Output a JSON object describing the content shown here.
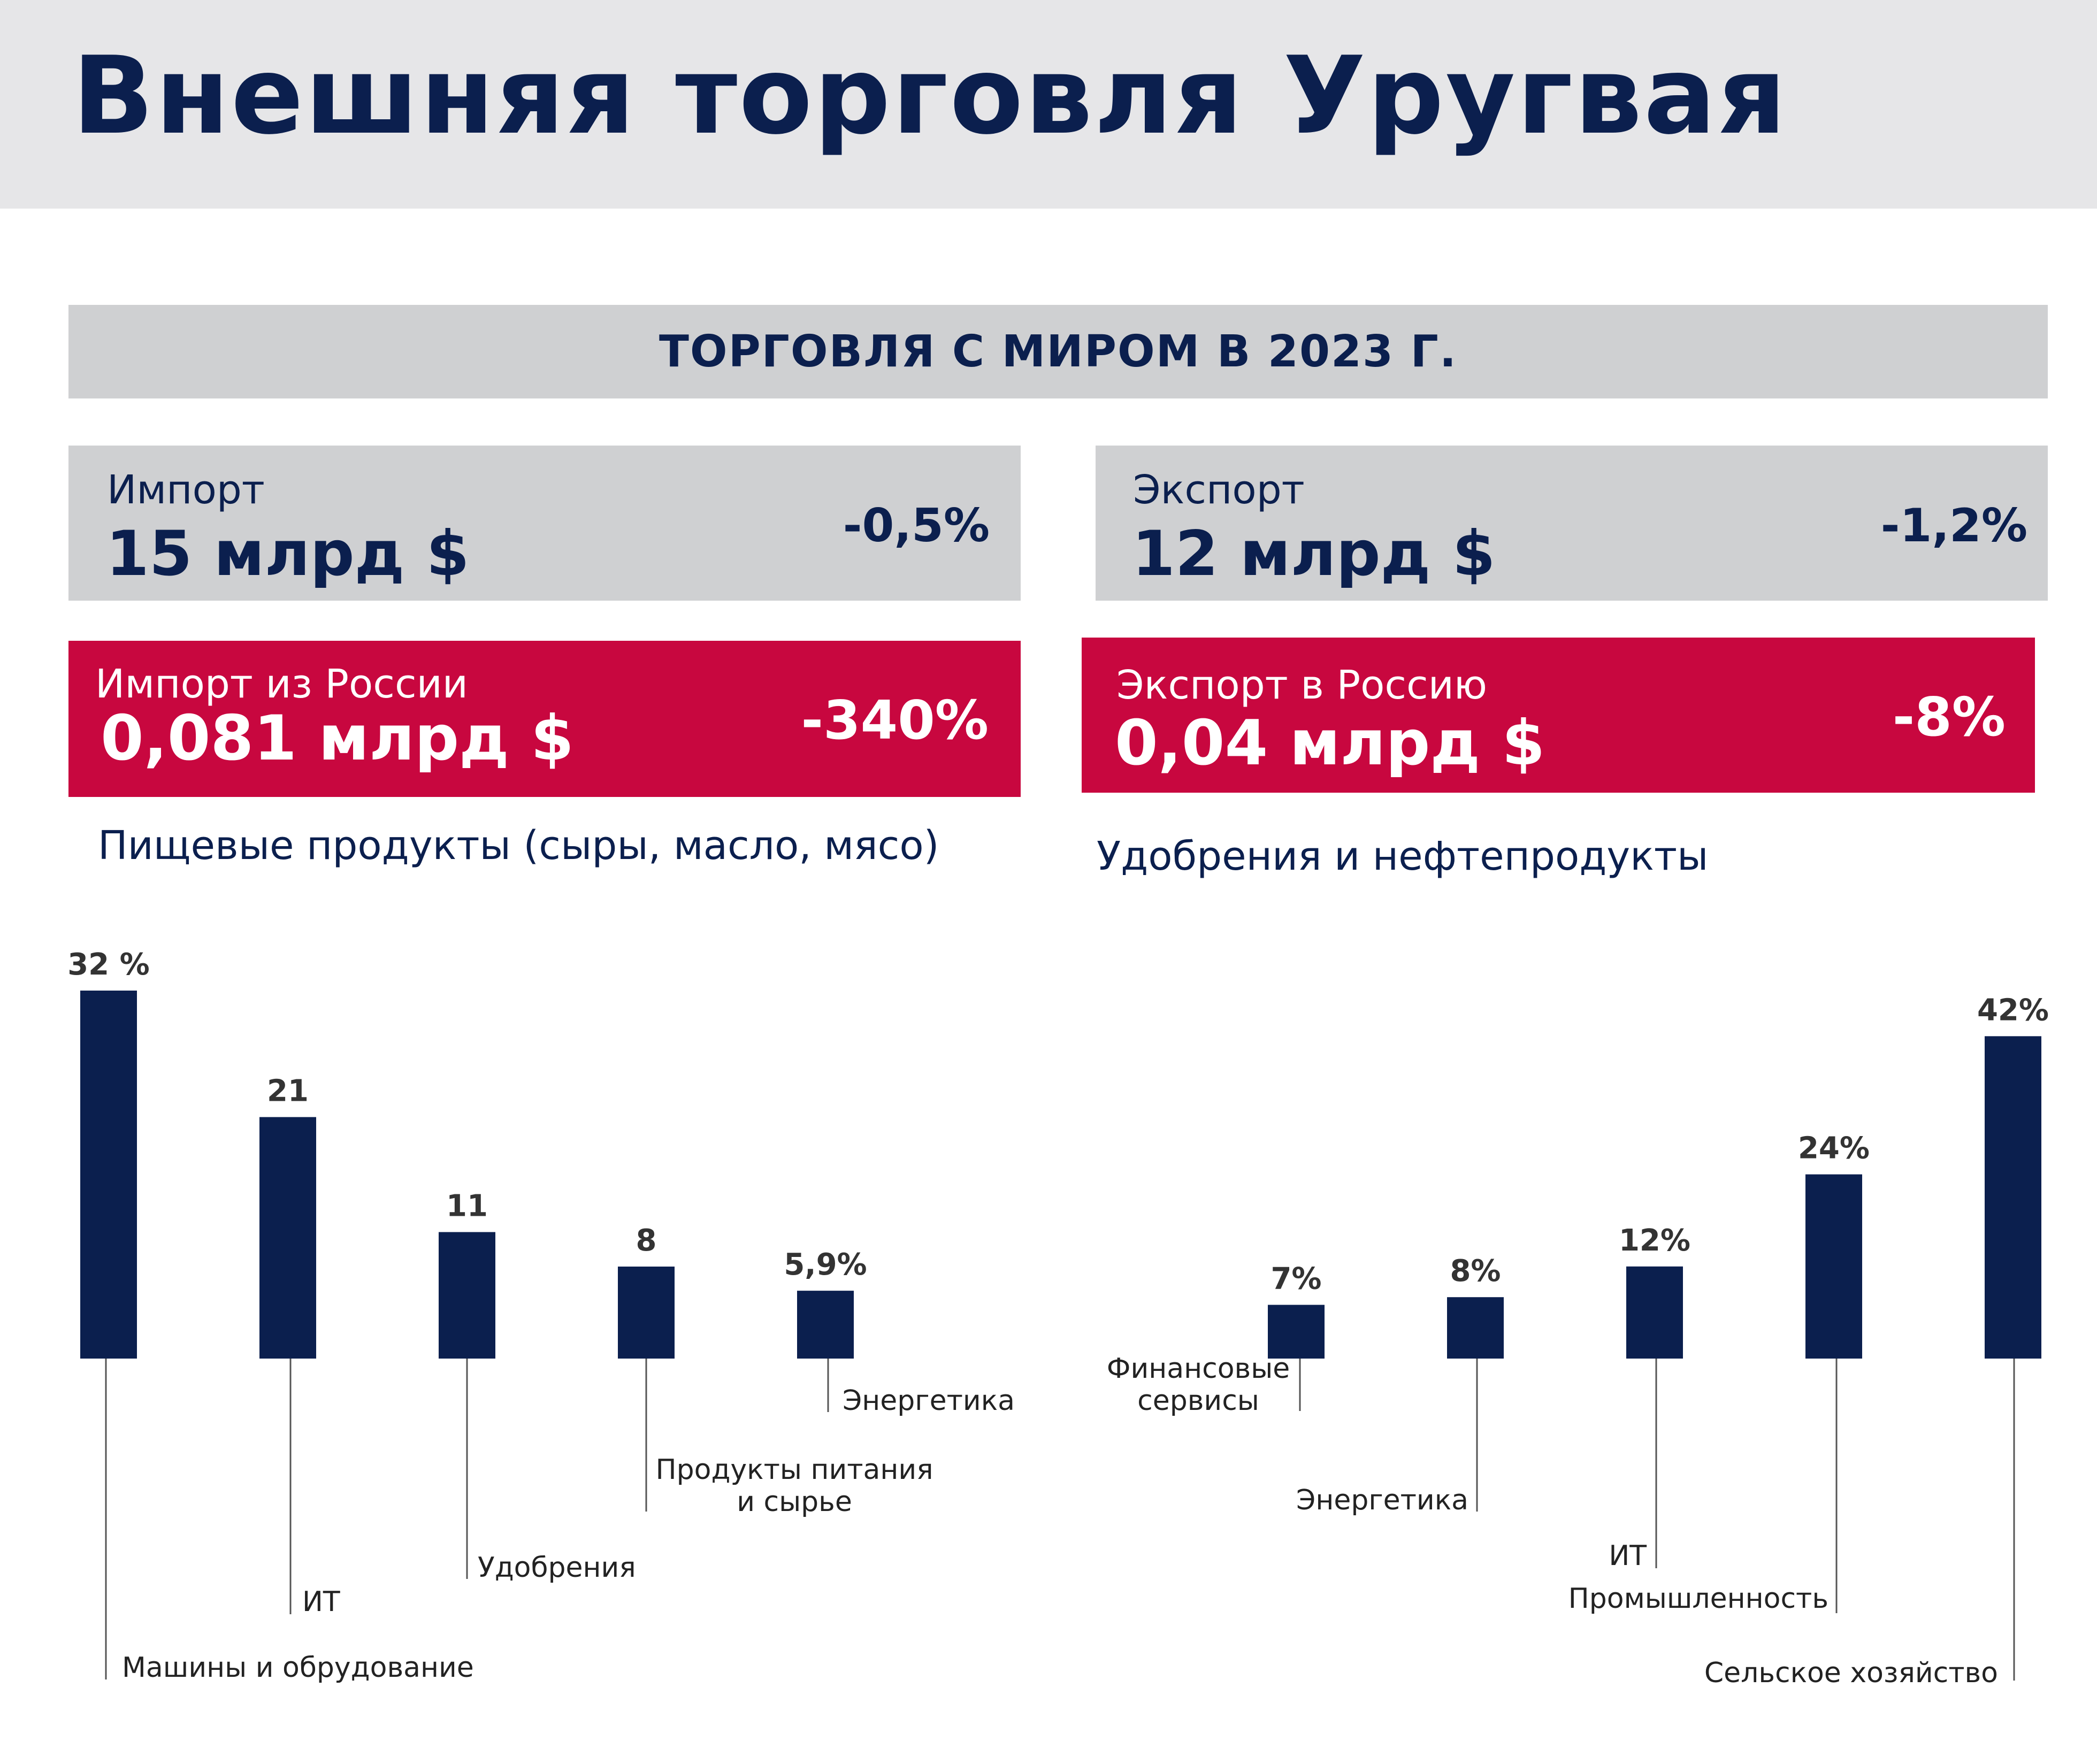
{
  "header": {
    "title": "Внешняя торговля Уругвая"
  },
  "section": {
    "title": "ТОРГОВЛЯ С МИРОМ В 2023 Г."
  },
  "cards": {
    "import_world": {
      "label": "Импорт",
      "value": "15 млрд $",
      "change": "-0,5%"
    },
    "export_world": {
      "label": "Экспорт",
      "value": "12 млрд $",
      "change": "-1,2%"
    },
    "import_russia": {
      "label": "Импорт из России",
      "value": "0,081 млрд $",
      "change": "-340%"
    },
    "export_russia": {
      "label": "Экспорт в Россию",
      "value": "0,04 млрд $",
      "change": "-8%"
    }
  },
  "notes": {
    "import_russia": "Пищевые продукты (сыры, масло, мясо)",
    "export_russia": "Удобрения и нефтепродукты"
  },
  "colors": {
    "navy": "#0b1f4e",
    "red": "#c8073f",
    "gray": "#cfd0d2",
    "band": "#e6e6e8"
  },
  "chart_data": [
    {
      "type": "bar",
      "categories": [
        "Машины и обрудование",
        "ИТ",
        "Удобрения",
        "Продукты питания\nи сырье",
        "Энергетика"
      ],
      "values": [
        32,
        21,
        11,
        8,
        5.9
      ],
      "data_labels": [
        "32 %",
        "21",
        "11",
        "8",
        "5,9%"
      ],
      "ylabel": "",
      "ylim": [
        0,
        36
      ],
      "grid": false,
      "legend": "none"
    },
    {
      "type": "bar",
      "categories": [
        "Финансовые\nсервисы",
        "Энергетика",
        "ИТ",
        "Промышленность",
        "Сельское хозяйство"
      ],
      "values": [
        7,
        8,
        12,
        24,
        42
      ],
      "data_labels": [
        "7%",
        "8%",
        "12%",
        "24%",
        "42%"
      ],
      "ylabel": "",
      "ylim": [
        0,
        46
      ],
      "grid": false,
      "legend": "none"
    }
  ]
}
